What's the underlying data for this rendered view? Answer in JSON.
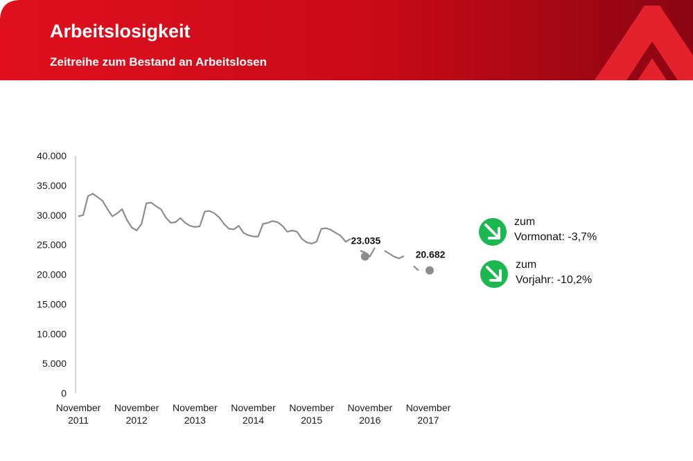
{
  "header": {
    "title": "Arbeitslosigkeit",
    "subtitle": "Zeitreihe zum Bestand an Arbeitslosen"
  },
  "colors": {
    "brand_red": "#d40e1c",
    "brand_dark_red": "#8a0512",
    "line_gray": "#8c8c8c",
    "down_green": "#1ab84e"
  },
  "changes": [
    {
      "icon": "arrow-down-right-icon",
      "label": "zum",
      "text": "Vormonat: -3,7%"
    },
    {
      "icon": "arrow-down-right-icon",
      "label": "zum",
      "text": "Vorjahr: -10,2%"
    }
  ],
  "chart_data": {
    "type": "line",
    "title": "",
    "xlabel": "",
    "ylabel": "",
    "ylim": [
      0,
      40000
    ],
    "yticks": [
      "0",
      "5.000",
      "10.000",
      "15.000",
      "20.000",
      "25.000",
      "30.000",
      "35.000",
      "40.000"
    ],
    "yticks_values": [
      0,
      5000,
      10000,
      15000,
      20000,
      25000,
      30000,
      35000,
      40000
    ],
    "xticks": [
      [
        "November",
        "2011"
      ],
      [
        "November",
        "2012"
      ],
      [
        "November",
        "2013"
      ],
      [
        "November",
        "2014"
      ],
      [
        "November",
        "2015"
      ],
      [
        "November",
        "2016"
      ],
      [
        "November",
        "2017"
      ]
    ],
    "x_unit": "months since November 2011",
    "grid": false,
    "series": [
      {
        "values": [
          29800,
          30000,
          33200,
          33600,
          33000,
          32400,
          31000,
          29800,
          30300,
          31000,
          29200,
          27900,
          27400,
          28500,
          32000,
          32100,
          31500,
          31000,
          29600,
          28700,
          28800,
          29500,
          28700,
          28200,
          28000,
          28100,
          30600,
          30700,
          30300,
          29600,
          28500,
          27700,
          27600,
          28200,
          27000,
          26600,
          26400,
          26400,
          28500,
          28700,
          29000,
          28800,
          28200,
          27200,
          27400,
          27200,
          26000,
          25400,
          25200,
          25500,
          27700,
          27800,
          27500,
          27000,
          26500,
          25500,
          26000,
          null,
          24000,
          23700,
          23035,
          24500,
          null,
          24000,
          23500,
          23000,
          22700,
          23100,
          null,
          21400,
          20682
        ]
      }
    ],
    "annotations": [
      {
        "month": 60,
        "value": 23035,
        "label": "23.035"
      },
      {
        "month": 72,
        "value": 20682,
        "label": "20.682"
      }
    ]
  }
}
